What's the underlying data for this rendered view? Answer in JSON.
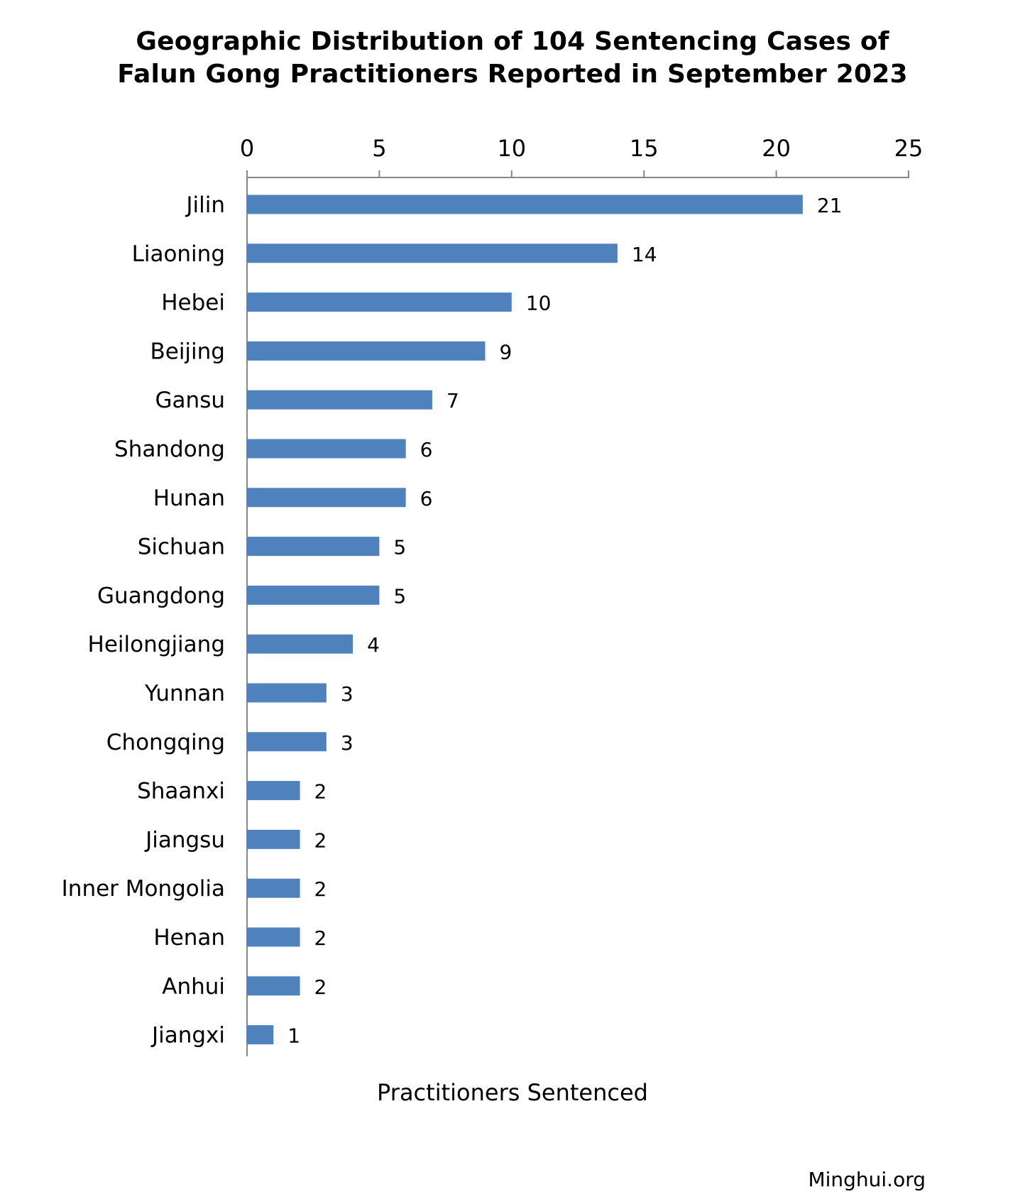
{
  "chart_data": {
    "type": "bar",
    "orientation": "horizontal",
    "title": "Geographic Distribution of 104 Sentencing Cases of Falun Gong Practitioners Reported in September 2023",
    "title_lines": [
      "Geographic Distribution of 104 Sentencing Cases of",
      "Falun Gong Practitioners Reported in September 2023"
    ],
    "xlabel": "Practitioners Sentenced",
    "ylabel": "",
    "xlim": [
      0,
      25
    ],
    "xticks": [
      0,
      5,
      10,
      15,
      20,
      25
    ],
    "x_axis_position": "top",
    "grid": false,
    "bar_color": "#4F81BD",
    "categories": [
      "Jilin",
      "Liaoning",
      "Hebei",
      "Beijing",
      "Gansu",
      "Shandong",
      "Hunan",
      "Sichuan",
      "Guangdong",
      "Heilongjiang",
      "Yunnan",
      "Chongqing",
      "Shaanxi",
      "Jiangsu",
      "Inner Mongolia",
      "Henan",
      "Anhui",
      "Jiangxi"
    ],
    "values": [
      21,
      14,
      10,
      9,
      7,
      6,
      6,
      5,
      5,
      4,
      3,
      3,
      2,
      2,
      2,
      2,
      2,
      1
    ]
  },
  "source_credit": "Minghui.org"
}
